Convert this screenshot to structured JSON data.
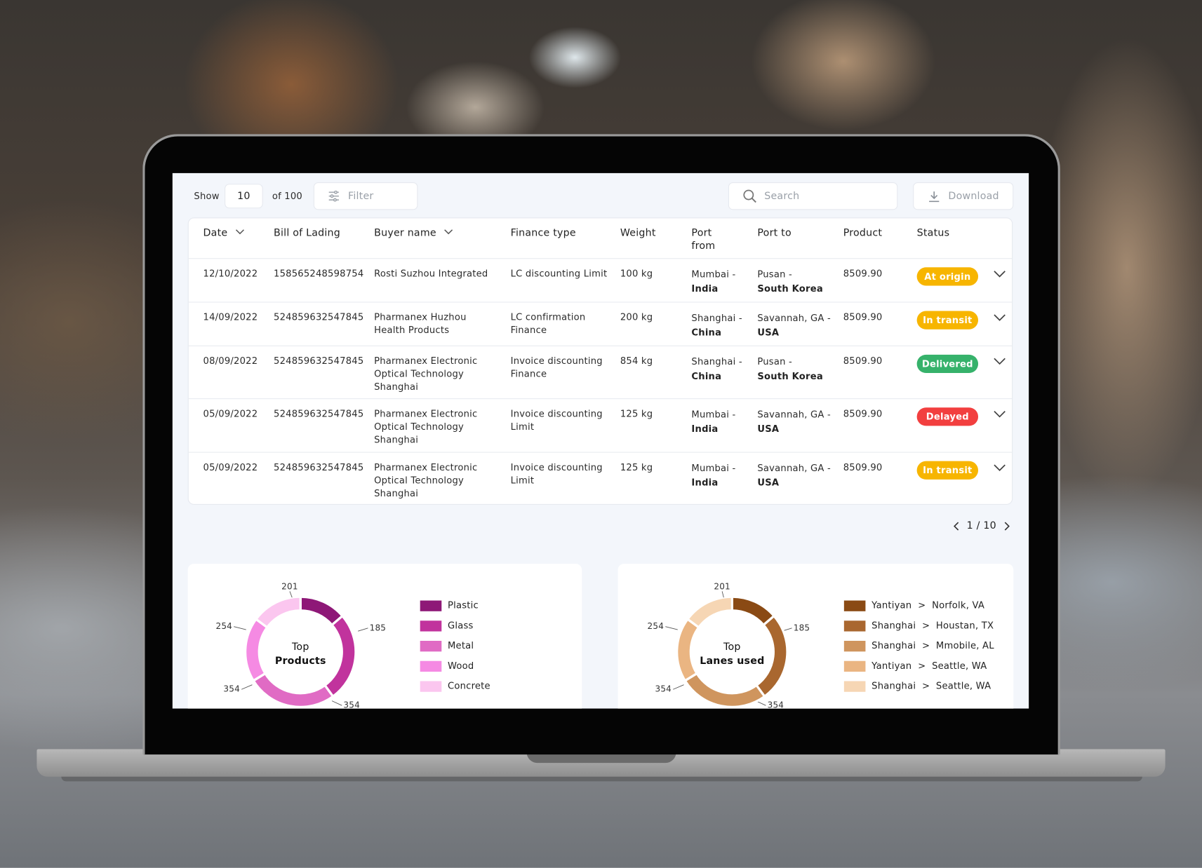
{
  "toolbar": {
    "show_label": "Show",
    "page_size": "10",
    "of_total": "of 100",
    "filter": "Filter",
    "search": "Search",
    "download": "Download"
  },
  "table": {
    "columns": [
      "Date",
      "Bill of Lading",
      "Buyer name",
      "Finance type",
      "Weight",
      "Port from",
      "Port to",
      "Product",
      "Status"
    ],
    "rows": [
      {
        "date": "12/10/2022",
        "bill": "158565248598754",
        "buyer": "Rosti Suzhou Integrated",
        "finance": "LC discounting Limit",
        "weight": "100 kg",
        "port_from": {
          "city": "Mumbai -",
          "country": "India"
        },
        "port_to": {
          "city": "Pusan -",
          "country": "South Korea"
        },
        "product": "8509.90",
        "status": {
          "label": "At origin",
          "color": "#f7b500"
        }
      },
      {
        "date": "14/09/2022",
        "bill": "524859632547845",
        "buyer": "Pharmanex Huzhou Health Products",
        "finance": "LC confirmation Finance",
        "weight": "200 kg",
        "port_from": {
          "city": "Shanghai -",
          "country": "China"
        },
        "port_to": {
          "city": "Savannah, GA -",
          "country": "USA"
        },
        "product": "8509.90",
        "status": {
          "label": "In transit",
          "color": "#f7b500"
        }
      },
      {
        "date": "08/09/2022",
        "bill": "524859632547845",
        "buyer": "Pharmanex Electronic Optical Technology Shanghai",
        "finance": "Invoice discounting Finance",
        "weight": "854 kg",
        "port_from": {
          "city": "Shanghai -",
          "country": "China"
        },
        "port_to": {
          "city": "Pusan -",
          "country": "South Korea"
        },
        "product": "8509.90",
        "status": {
          "label": "Delivered",
          "color": "#36b26b"
        }
      },
      {
        "date": "05/09/2022",
        "bill": "524859632547845",
        "buyer": "Pharmanex Electronic Optical Technology Shanghai",
        "finance": "Invoice discounting Limit",
        "weight": "125 kg",
        "port_from": {
          "city": "Mumbai -",
          "country": "India"
        },
        "port_to": {
          "city": "Savannah, GA -",
          "country": "USA"
        },
        "product": "8509.90",
        "status": {
          "label": "Delayed",
          "color": "#f23f3f"
        }
      },
      {
        "date": "05/09/2022",
        "bill": "524859632547845",
        "buyer": "Pharmanex Electronic Optical Technology Shanghai",
        "finance": "Invoice discounting Limit",
        "weight": "125 kg",
        "port_from": {
          "city": "Mumbai -",
          "country": "India"
        },
        "port_to": {
          "city": "Savannah, GA -",
          "country": "USA"
        },
        "product": "8509.90",
        "status": {
          "label": "In transit",
          "color": "#f7b500"
        }
      }
    ]
  },
  "pagination": "1 / 10",
  "charts": [
    {
      "center_label": [
        "Top",
        "Products"
      ],
      "slices": [
        {
          "label": "Plastic",
          "value": 185,
          "color": "#8e1877"
        },
        {
          "label": "Glass",
          "value": 354,
          "color": "#c1339d"
        },
        {
          "label": "Metal",
          "value": 354,
          "color": "#e06bc4"
        },
        {
          "label": "Wood",
          "value": 254,
          "color": "#f58ae3"
        },
        {
          "label": "Concrete",
          "value": 201,
          "color": "#fbc6ef"
        }
      ]
    },
    {
      "center_label": [
        "Top",
        "Lanes used"
      ],
      "slices": [
        {
          "label": "Yantiyan  >  Norfolk, VA",
          "value": 185,
          "color": "#8a4a14"
        },
        {
          "label": "Shanghai  >  Houstan, TX",
          "value": 354,
          "color": "#a9672f"
        },
        {
          "label": "Shanghai  >  Mmobile, AL",
          "value": 354,
          "color": "#cf955e"
        },
        {
          "label": "Yantiyan  >  Seattle, WA",
          "value": 254,
          "color": "#eab582"
        },
        {
          "label": "Shanghai  >  Seattle, WA",
          "value": 201,
          "color": "#f6d6b4"
        }
      ]
    }
  ]
}
